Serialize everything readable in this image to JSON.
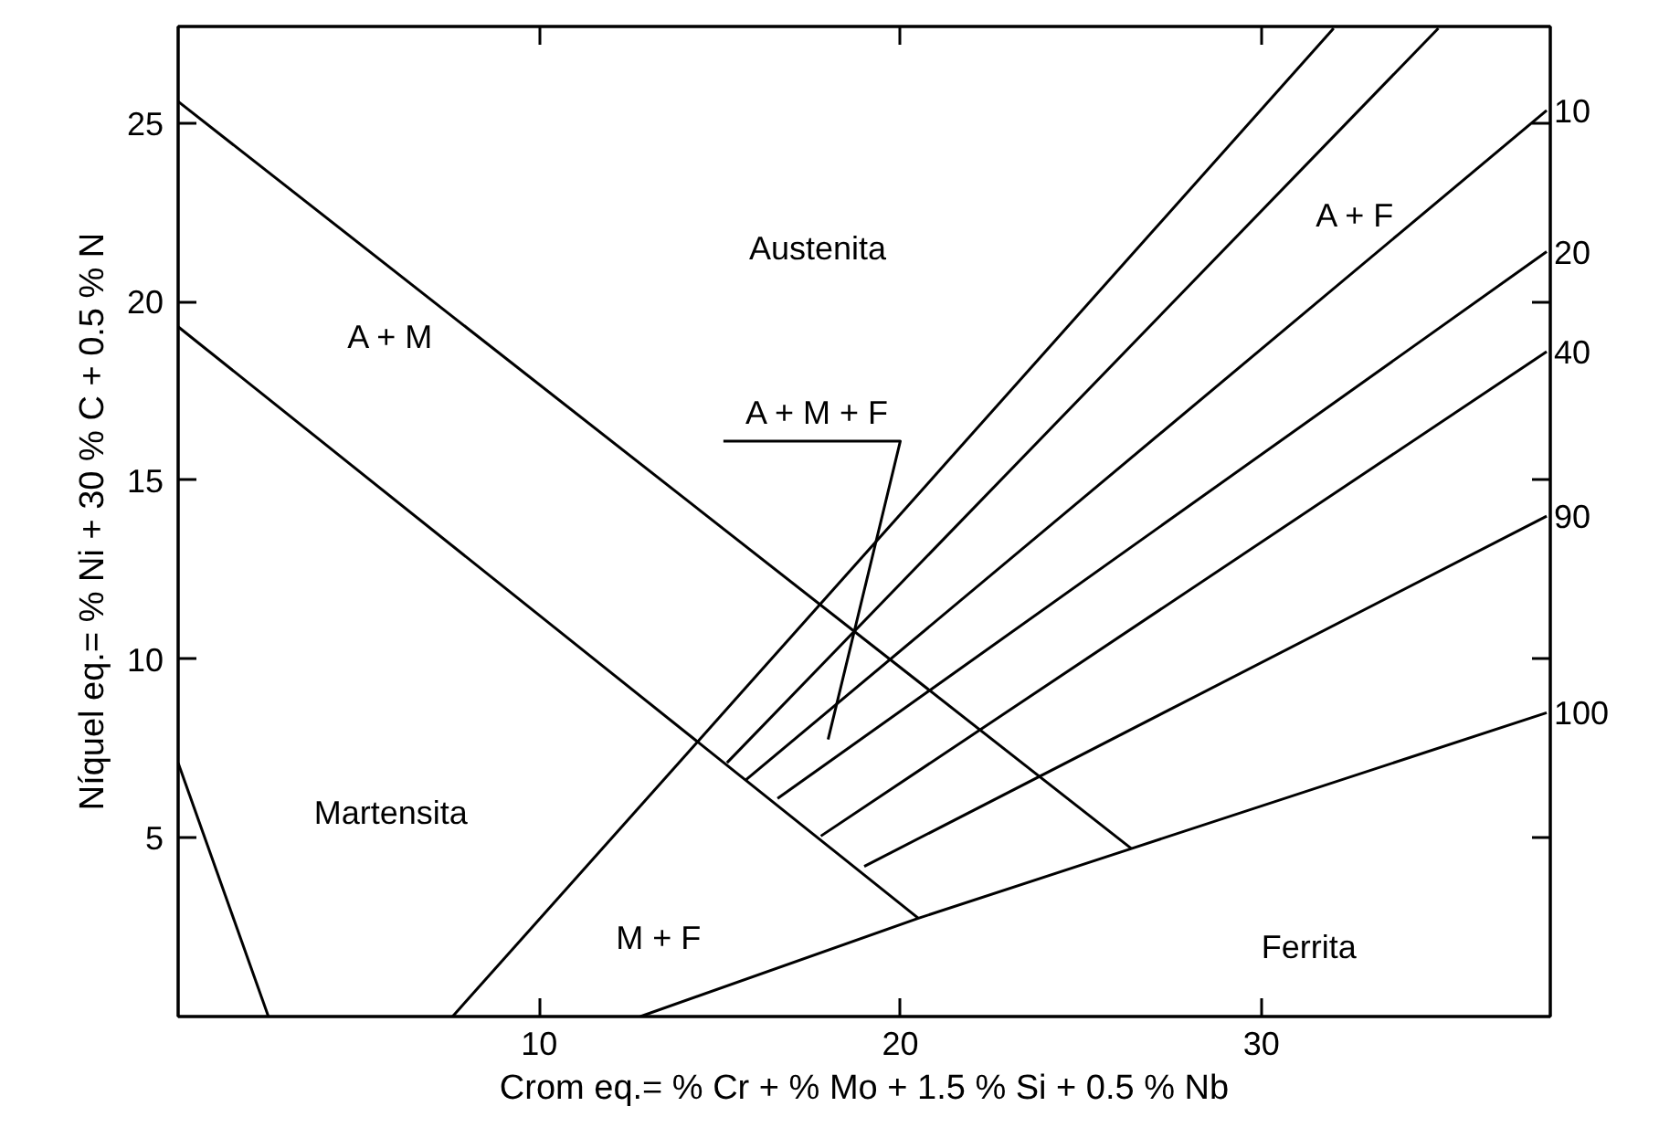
{
  "chart_data": {
    "type": "line",
    "xlabel": "Crom eq.= % Cr + % Mo + 1.5 % Si + 0.5 % Nb",
    "ylabel": "Níquel eq.= % Ni + 30 % C + 0.5 % N",
    "xlim": [
      0,
      38
    ],
    "ylim": [
      0,
      27.7
    ],
    "xticks": [
      10,
      20,
      30
    ],
    "yticks": [
      5,
      10,
      15,
      20,
      25
    ],
    "grid": false,
    "legend": "right",
    "series": [
      {
        "color": "#000000",
        "x": [
          0,
          20.5
        ],
        "values": [
          19.3,
          2.75
        ]
      },
      {
        "color": "#000000",
        "x": [
          0,
          26.4
        ],
        "values": [
          25.6,
          4.7
        ]
      },
      {
        "color": "#000000",
        "x": [
          0,
          2.5
        ],
        "values": [
          7.1,
          0
        ]
      },
      {
        "name": "100",
        "color": "#000000",
        "x": [
          12.8,
          20.5,
          26.4,
          37.9
        ],
        "values": [
          0,
          2.75,
          4.7,
          8.5
        ]
      },
      {
        "color": "#000000",
        "x": [
          7.6,
          32.0
        ],
        "values": [
          0,
          27.65
        ]
      },
      {
        "color": "#000000",
        "x": [
          15.2,
          34.9
        ],
        "values": [
          7.1,
          27.65
        ]
      },
      {
        "name": "10",
        "color": "#000000",
        "x": [
          15.7,
          37.9
        ],
        "values": [
          6.6,
          25.35
        ]
      },
      {
        "name": "20",
        "color": "#000000",
        "x": [
          16.6,
          37.9
        ],
        "values": [
          6.1,
          21.4
        ]
      },
      {
        "name": "40",
        "color": "#000000",
        "x": [
          17.8,
          37.9
        ],
        "values": [
          5.05,
          18.6
        ]
      },
      {
        "name": "90",
        "color": "#000000",
        "x": [
          19.0,
          37.9
        ],
        "values": [
          4.2,
          14.0
        ]
      },
      {
        "color": "#000000",
        "x": [
          15.1,
          20.0,
          18.0
        ],
        "values": [
          16.1,
          16.1,
          7.75
        ]
      }
    ],
    "annotations": [
      "Austenita",
      "A + M",
      "A + F",
      "A + M + F",
      "Martensita",
      "M + F",
      "Ferrita"
    ]
  }
}
